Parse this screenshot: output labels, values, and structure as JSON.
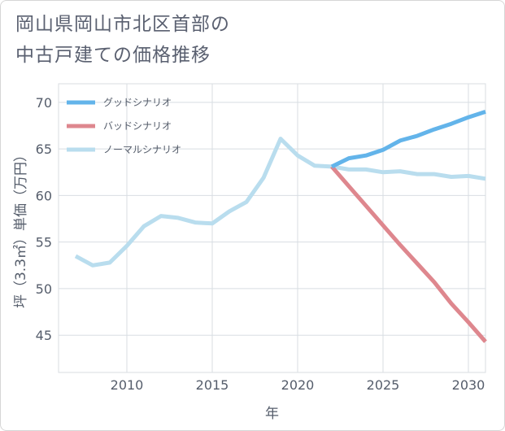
{
  "title_line1": "岡山県岡山市北区首部の",
  "title_line2": "中古戸建ての価格推移",
  "chart_data": {
    "type": "line",
    "xlabel": "年",
    "ylabel": "坪（3.3㎡）単価（万円）",
    "xlim": [
      2006,
      2031
    ],
    "ylim": [
      41,
      72
    ],
    "xticks": [
      2010,
      2015,
      2020,
      2025,
      2030
    ],
    "yticks": [
      45,
      50,
      55,
      60,
      65,
      70
    ],
    "grid": true,
    "legend_position": "top-left",
    "series": [
      {
        "name": "グッドシナリオ",
        "color": "#63b4ea",
        "points": [
          [
            2022,
            63.1
          ],
          [
            2023,
            64.0
          ],
          [
            2024,
            64.3
          ],
          [
            2025,
            64.9
          ],
          [
            2026,
            65.9
          ],
          [
            2027,
            66.4
          ],
          [
            2028,
            67.1
          ],
          [
            2029,
            67.7
          ],
          [
            2030,
            68.4
          ],
          [
            2031,
            69.0
          ]
        ]
      },
      {
        "name": "バッドシナリオ",
        "color": "#de878e",
        "points": [
          [
            2022,
            63.1
          ],
          [
            2023,
            61.0
          ],
          [
            2024,
            58.9
          ],
          [
            2025,
            56.8
          ],
          [
            2026,
            54.7
          ],
          [
            2027,
            52.7
          ],
          [
            2028,
            50.7
          ],
          [
            2029,
            48.4
          ],
          [
            2030,
            46.4
          ],
          [
            2031,
            44.3
          ]
        ]
      },
      {
        "name": "ノーマルシナリオ",
        "color": "#b9ddee",
        "points": [
          [
            2007,
            53.5
          ],
          [
            2008,
            52.5
          ],
          [
            2009,
            52.8
          ],
          [
            2010,
            54.6
          ],
          [
            2011,
            56.7
          ],
          [
            2012,
            57.8
          ],
          [
            2013,
            57.6
          ],
          [
            2014,
            57.1
          ],
          [
            2015,
            57.0
          ],
          [
            2016,
            58.3
          ],
          [
            2017,
            59.3
          ],
          [
            2018,
            61.9
          ],
          [
            2019,
            66.1
          ],
          [
            2020,
            64.3
          ],
          [
            2021,
            63.2
          ],
          [
            2022,
            63.1
          ],
          [
            2023,
            62.8
          ],
          [
            2024,
            62.8
          ],
          [
            2025,
            62.5
          ],
          [
            2026,
            62.6
          ],
          [
            2027,
            62.3
          ],
          [
            2028,
            62.3
          ],
          [
            2029,
            62.0
          ],
          [
            2030,
            62.1
          ],
          [
            2031,
            61.8
          ]
        ]
      }
    ]
  }
}
